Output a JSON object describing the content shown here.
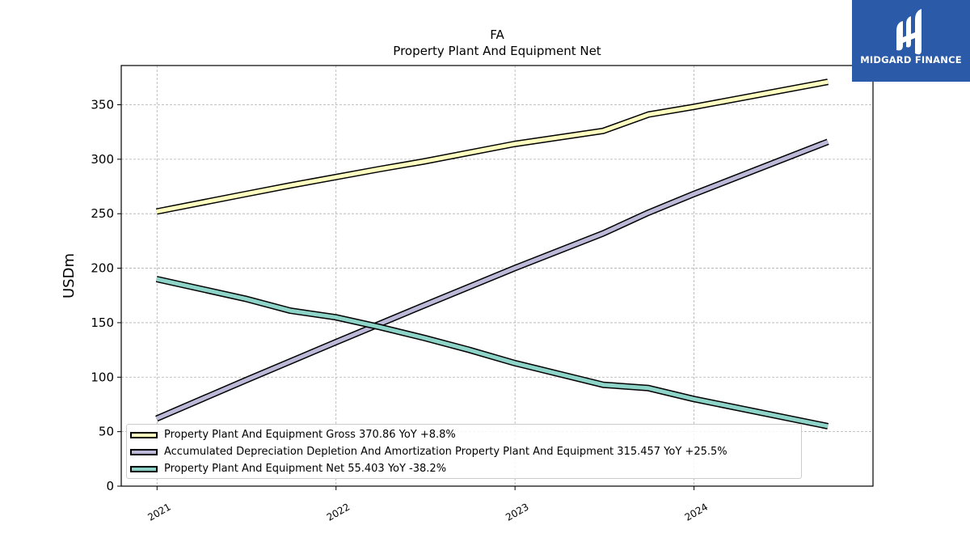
{
  "logo": {
    "text": "MIDGARD FINANCE",
    "color": "#2b5aa8"
  },
  "chart_data": {
    "type": "line",
    "title": "FA",
    "subtitle": "Property Plant And Equipment Net",
    "xlabel": "",
    "ylabel": "USDm",
    "x_ticks": [
      "2021",
      "2022",
      "2023",
      "2024"
    ],
    "y_ticks": [
      0,
      50,
      100,
      150,
      200,
      250,
      300,
      350
    ],
    "xlim": [
      "2020-10-20",
      "2024-12-31"
    ],
    "ylim": [
      0,
      386
    ],
    "grid": true,
    "legend_position": "lower-left",
    "series": [
      {
        "name": "Property Plant And Equipment Gross",
        "legend_label": "Property Plant And Equipment Gross  370.86 YoY +8.8%",
        "color": "#ffffbf",
        "x": [
          "2020-12-31",
          "2021-06-30",
          "2021-09-30",
          "2022-03-31",
          "2022-06-30",
          "2022-12-31",
          "2023-06-30",
          "2023-09-30",
          "2023-12-31",
          "2024-09-30"
        ],
        "values": [
          252,
          268,
          276,
          291,
          298,
          314,
          326,
          341,
          348,
          371
        ]
      },
      {
        "name": "Accumulated Depreciation Depletion And Amortization Property Plant And Equipment",
        "legend_label": "Accumulated Depreciation Depletion And Amortization Property Plant And Equipment  315.457 YoY +25.5%",
        "color": "#bcb8d8",
        "x": [
          "2020-12-31",
          "2021-06-30",
          "2021-12-31",
          "2022-06-30",
          "2022-12-31",
          "2023-06-30",
          "2023-09-30",
          "2023-12-31",
          "2024-09-30"
        ],
        "values": [
          62,
          97,
          132,
          166,
          200,
          232,
          251,
          268,
          316
        ]
      },
      {
        "name": "Property Plant And Equipment Net",
        "legend_label": "Property Plant And Equipment Net  55.403 YoY -38.2%",
        "color": "#8dd3c7",
        "x": [
          "2020-12-31",
          "2021-06-30",
          "2021-09-30",
          "2021-12-31",
          "2022-03-31",
          "2022-06-30",
          "2022-09-30",
          "2022-12-31",
          "2023-06-30",
          "2023-09-30",
          "2023-12-31",
          "2024-09-30"
        ],
        "values": [
          190,
          172,
          161,
          155,
          146,
          136,
          125,
          113,
          93,
          90,
          80,
          55
        ]
      }
    ]
  }
}
